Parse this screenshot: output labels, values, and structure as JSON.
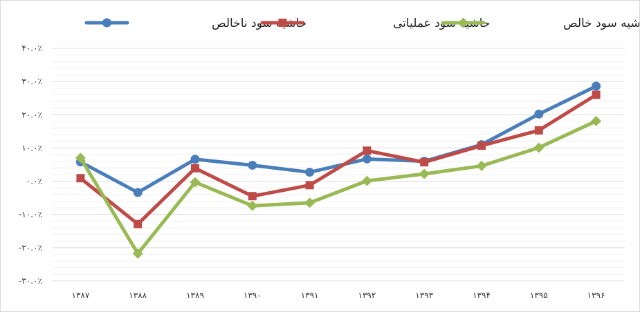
{
  "chart_data": {
    "type": "line",
    "categories": [
      "۱۳۸۷",
      "۱۳۸۸",
      "۱۳۸۹",
      "۱۳۹۰",
      "۱۳۹۱",
      "۱۳۹۲",
      "۱۳۹۳",
      "۱۳۹۴",
      "۱۳۹۵",
      "۱۳۹۶"
    ],
    "y_ticks": [
      "۴۰.۰٪",
      "۳۰.۰٪",
      "۲۰.۰٪",
      "۱۰.۰٪",
      "۰.۰٪",
      "-۱۰.۰٪",
      "-۲۰.۰٪",
      "-۳۰.۰٪"
    ],
    "ylim": [
      -30,
      40
    ],
    "grid": true,
    "legend_position": "top",
    "series": [
      {
        "name": "حاشیه سود ناخالص",
        "color": "#4a7ebb",
        "marker": "circle",
        "values": [
          5.8,
          -3.4,
          6.6,
          4.8,
          2.7,
          6.7,
          6.0,
          11.0,
          20.2,
          28.6
        ]
      },
      {
        "name": "حاشیه سود عملیاتی",
        "color": "#be4b48",
        "marker": "square",
        "values": [
          0.9,
          -12.9,
          3.9,
          -4.5,
          -1.2,
          9.2,
          5.7,
          10.7,
          15.3,
          26.0
        ]
      },
      {
        "name": "حاشیه سود خالص",
        "color": "#98b954",
        "marker": "diamond",
        "values": [
          7.0,
          -21.8,
          -0.3,
          -7.4,
          -6.5,
          0.1,
          2.2,
          4.6,
          10.1,
          18.1
        ]
      }
    ]
  }
}
